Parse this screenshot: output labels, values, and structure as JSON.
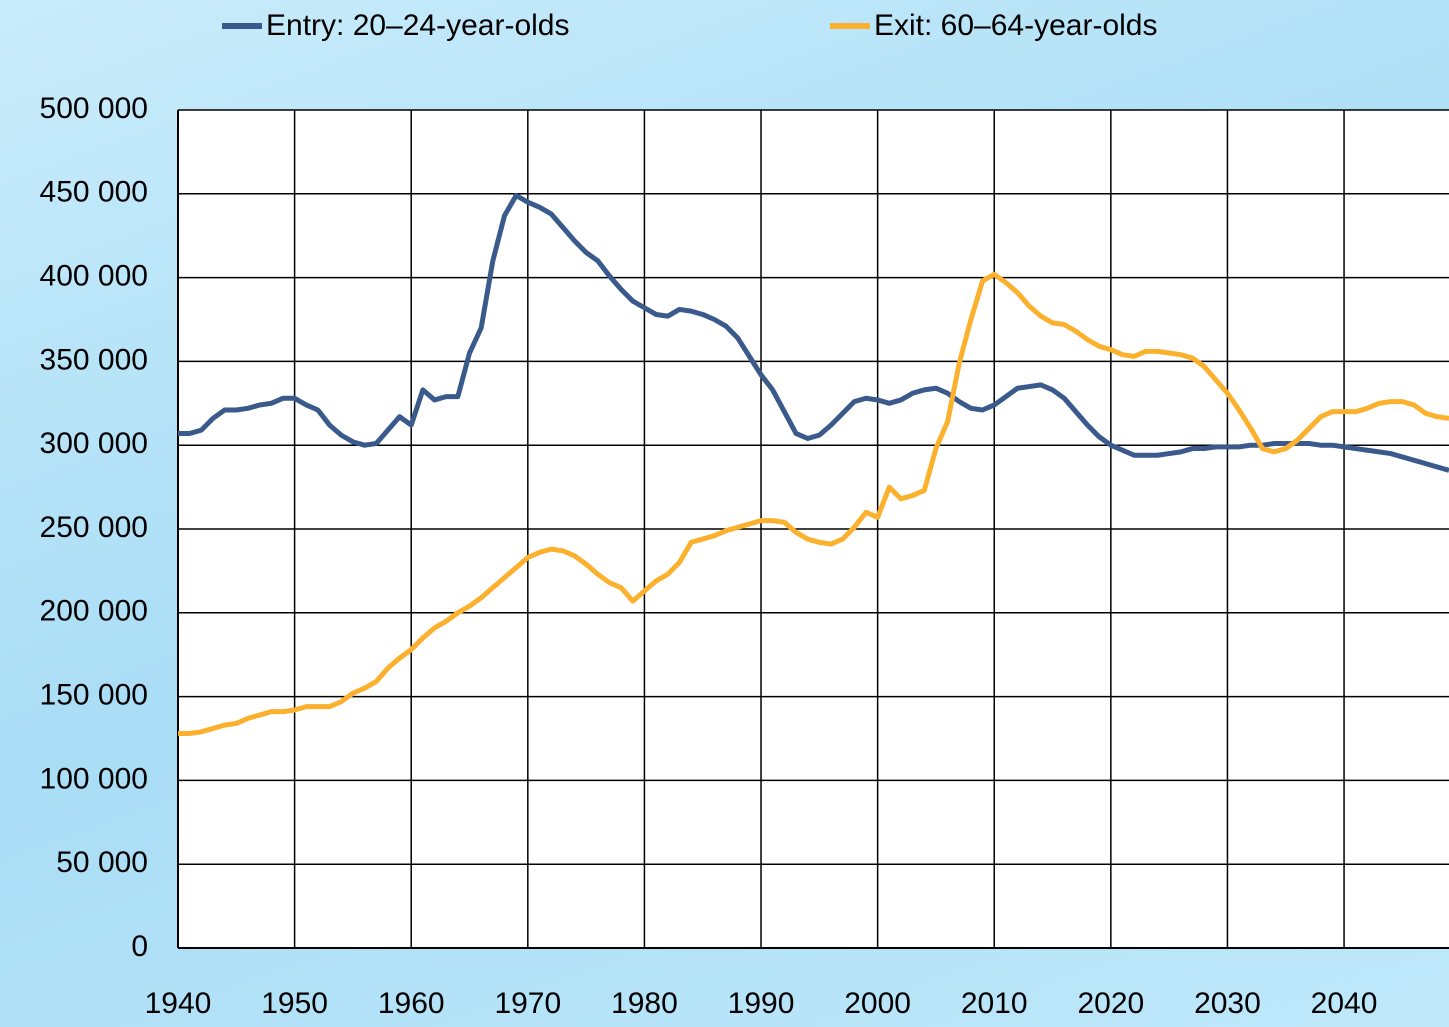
{
  "chart_data": {
    "type": "line",
    "x": [
      1940,
      1941,
      1942,
      1943,
      1944,
      1945,
      1946,
      1947,
      1948,
      1949,
      1950,
      1951,
      1952,
      1953,
      1954,
      1955,
      1956,
      1957,
      1958,
      1959,
      1960,
      1961,
      1962,
      1963,
      1964,
      1965,
      1966,
      1967,
      1968,
      1969,
      1970,
      1971,
      1972,
      1973,
      1974,
      1975,
      1976,
      1977,
      1978,
      1979,
      1980,
      1981,
      1982,
      1983,
      1984,
      1985,
      1986,
      1987,
      1988,
      1989,
      1990,
      1991,
      1992,
      1993,
      1994,
      1995,
      1996,
      1997,
      1998,
      1999,
      2000,
      2001,
      2002,
      2003,
      2004,
      2005,
      2006,
      2007,
      2008,
      2009,
      2010,
      2011,
      2012,
      2013,
      2014,
      2015,
      2016,
      2017,
      2018,
      2019,
      2020,
      2021,
      2022,
      2023,
      2024,
      2025,
      2026,
      2027,
      2028,
      2029,
      2030,
      2031,
      2032,
      2033,
      2034,
      2035,
      2036,
      2037,
      2038,
      2039,
      2040,
      2041,
      2042,
      2043,
      2044,
      2045,
      2046,
      2047,
      2048,
      2049
    ],
    "series": [
      {
        "name": "Entry: 20–24-year-olds",
        "color": "#3a5a8c",
        "values": [
          307000,
          307000,
          309000,
          316000,
          321000,
          321000,
          322000,
          324000,
          325000,
          328000,
          328000,
          324000,
          321000,
          312000,
          306000,
          302000,
          300000,
          301000,
          309000,
          317000,
          312000,
          333000,
          327000,
          329000,
          329000,
          355000,
          370000,
          410000,
          437000,
          449000,
          445000,
          442000,
          438000,
          430000,
          422000,
          415000,
          410000,
          401000,
          393000,
          386000,
          382000,
          378000,
          377000,
          381000,
          380000,
          378000,
          375000,
          371000,
          364000,
          353000,
          342000,
          333000,
          320000,
          307000,
          304000,
          306000,
          312000,
          319000,
          326000,
          328000,
          327000,
          325000,
          327000,
          331000,
          333000,
          334000,
          331000,
          326000,
          322000,
          321000,
          324000,
          329000,
          334000,
          335000,
          336000,
          333000,
          328000,
          320000,
          312000,
          305000,
          300000,
          297000,
          294000,
          294000,
          294000,
          295000,
          296000,
          298000,
          298000,
          299000,
          299000,
          299000,
          300000,
          300000,
          301000,
          301000,
          301000,
          301000,
          300000,
          300000,
          299000,
          298000,
          297000,
          296000,
          295000,
          293000,
          291000,
          289000,
          287000,
          285000
        ]
      },
      {
        "name": "Exit: 60–64-year-olds",
        "color": "#fbb12e",
        "values": [
          128000,
          128000,
          129000,
          131000,
          133000,
          134000,
          137000,
          139000,
          141000,
          141000,
          142000,
          144000,
          144000,
          144000,
          147000,
          152000,
          155000,
          159000,
          167000,
          173000,
          178000,
          185000,
          191000,
          195000,
          200000,
          204000,
          209000,
          215000,
          221000,
          227000,
          233000,
          236000,
          238000,
          237000,
          234000,
          229000,
          223000,
          218000,
          215000,
          207000,
          213000,
          219000,
          223000,
          230000,
          242000,
          244000,
          246000,
          249000,
          251000,
          253000,
          255000,
          255000,
          254000,
          248000,
          244000,
          242000,
          241000,
          244000,
          251000,
          260000,
          257000,
          275000,
          268000,
          270000,
          273000,
          298000,
          314000,
          349000,
          375000,
          398000,
          402000,
          397000,
          391000,
          383000,
          377000,
          373000,
          372000,
          368000,
          363000,
          359000,
          357000,
          354000,
          353000,
          356000,
          356000,
          355000,
          354000,
          352000,
          347000,
          339000,
          331000,
          321000,
          310000,
          298000,
          296000,
          298000,
          303000,
          310000,
          317000,
          320000,
          320000,
          320000,
          322000,
          325000,
          326000,
          326000,
          324000,
          319000,
          317000,
          316000
        ]
      }
    ],
    "xlim": [
      1940,
      2049
    ],
    "xticks": [
      1940,
      1950,
      1960,
      1970,
      1980,
      1990,
      2000,
      2010,
      2020,
      2030,
      2040
    ],
    "ylim": [
      0,
      500000
    ],
    "yticks": [
      {
        "value": 0,
        "label": "0"
      },
      {
        "value": 50000,
        "label": "50 000"
      },
      {
        "value": 100000,
        "label": "100 000"
      },
      {
        "value": 150000,
        "label": "150 000"
      },
      {
        "value": 200000,
        "label": "200 000"
      },
      {
        "value": 250000,
        "label": "250 000"
      },
      {
        "value": 300000,
        "label": "300 000"
      },
      {
        "value": 350000,
        "label": "350 000"
      },
      {
        "value": 400000,
        "label": "400 000"
      },
      {
        "value": 450000,
        "label": "450 000"
      },
      {
        "value": 500000,
        "label": "500 000"
      }
    ],
    "grid": true,
    "legend": "top"
  }
}
